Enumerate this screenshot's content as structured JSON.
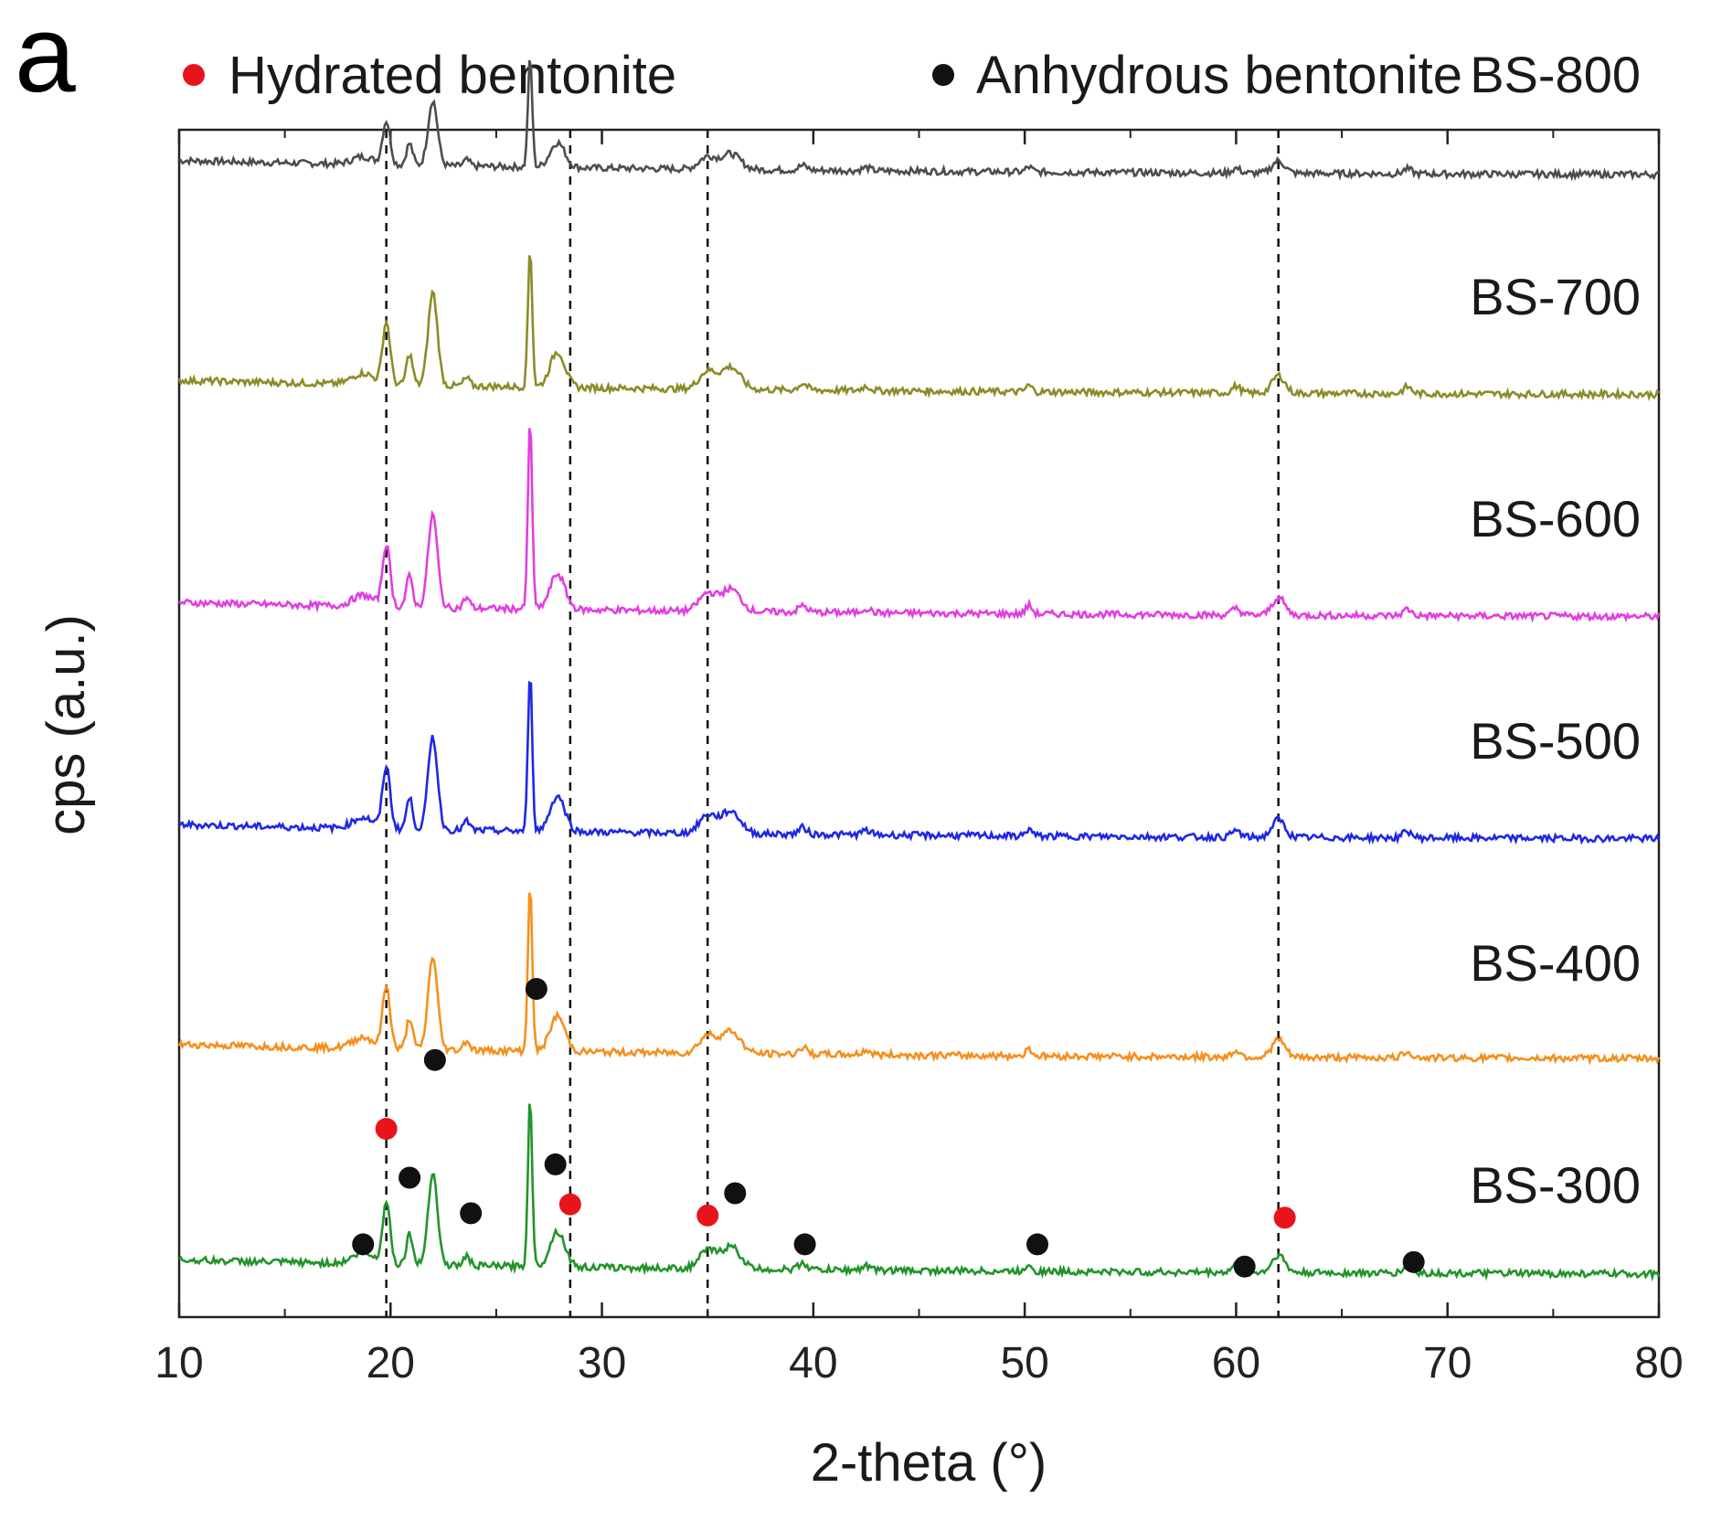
{
  "panel_label": "a",
  "legend": [
    {
      "label": "Hydrated bentonite",
      "color": "#e8141c",
      "marker": "dot"
    },
    {
      "label": "Anhydrous bentonite",
      "color": "#111111",
      "marker": "dot"
    }
  ],
  "chart_data": {
    "type": "line",
    "xlabel": "2-theta (°)",
    "ylabel": "cps (a.u.)",
    "xlim": [
      10,
      80
    ],
    "x_ticks": [
      10,
      20,
      30,
      40,
      50,
      60,
      70,
      80
    ],
    "y_ticks_shown": false,
    "grid": false,
    "reference_lines_x": [
      19.8,
      28.5,
      35.0,
      62.0
    ],
    "series": [
      {
        "name": "BS-800",
        "color": "#4d4d4d",
        "offset": 5.0,
        "base": 0.01,
        "sharp_scale": 0.55,
        "broad_scale": 0.7
      },
      {
        "name": "BS-700",
        "color": "#8c8c28",
        "offset": 4.0,
        "base": 0.02,
        "sharp_scale": 0.7,
        "broad_scale": 1.0
      },
      {
        "name": "BS-600",
        "color": "#e23ee2",
        "offset": 3.0,
        "base": 0.02,
        "sharp_scale": 0.95,
        "broad_scale": 1.0
      },
      {
        "name": "BS-500",
        "color": "#1e28e6",
        "offset": 2.0,
        "base": 0.02,
        "sharp_scale": 0.8,
        "broad_scale": 1.0
      },
      {
        "name": "BS-400",
        "color": "#f5901e",
        "offset": 1.0,
        "base": 0.03,
        "sharp_scale": 0.85,
        "broad_scale": 1.0
      },
      {
        "name": "BS-300",
        "color": "#22942a",
        "offset": 0.0,
        "base": 0.06,
        "sharp_scale": 0.85,
        "broad_scale": 1.0
      }
    ],
    "peaks": [
      {
        "x": 18.7,
        "height": 0.05,
        "width": 0.5
      },
      {
        "x": 19.8,
        "height": 0.28,
        "width": 0.18
      },
      {
        "x": 20.9,
        "height": 0.14,
        "width": 0.15
      },
      {
        "x": 22.0,
        "height": 0.42,
        "width": 0.22
      },
      {
        "x": 23.6,
        "height": 0.05,
        "width": 0.15
      },
      {
        "x": 26.6,
        "height": 0.9,
        "width": 0.1
      },
      {
        "x": 27.9,
        "height": 0.16,
        "width": 0.35
      },
      {
        "x": 35.0,
        "height": 0.08,
        "width": 0.4
      },
      {
        "x": 36.1,
        "height": 0.1,
        "width": 0.45
      },
      {
        "x": 39.5,
        "height": 0.03,
        "width": 0.2
      },
      {
        "x": 42.5,
        "height": 0.02,
        "width": 0.2
      },
      {
        "x": 50.2,
        "height": 0.04,
        "width": 0.15
      },
      {
        "x": 60.0,
        "height": 0.03,
        "width": 0.2
      },
      {
        "x": 62.0,
        "height": 0.08,
        "width": 0.3
      },
      {
        "x": 68.1,
        "height": 0.03,
        "width": 0.2
      }
    ],
    "markers_on_bs300": [
      {
        "x": 18.7,
        "y": 0.2,
        "type": "anhydrous"
      },
      {
        "x": 19.8,
        "y": 0.72,
        "type": "hydrated"
      },
      {
        "x": 20.9,
        "y": 0.5,
        "type": "anhydrous"
      },
      {
        "x": 22.1,
        "y": 1.03,
        "type": "anhydrous"
      },
      {
        "x": 23.8,
        "y": 0.34,
        "type": "anhydrous"
      },
      {
        "x": 26.9,
        "y": 1.35,
        "type": "anhydrous"
      },
      {
        "x": 27.8,
        "y": 0.56,
        "type": "anhydrous"
      },
      {
        "x": 28.5,
        "y": 0.38,
        "type": "hydrated"
      },
      {
        "x": 35.0,
        "y": 0.33,
        "type": "hydrated"
      },
      {
        "x": 36.3,
        "y": 0.43,
        "type": "anhydrous"
      },
      {
        "x": 39.6,
        "y": 0.2,
        "type": "anhydrous"
      },
      {
        "x": 50.6,
        "y": 0.2,
        "type": "anhydrous"
      },
      {
        "x": 60.4,
        "y": 0.1,
        "type": "anhydrous"
      },
      {
        "x": 62.3,
        "y": 0.32,
        "type": "hydrated"
      },
      {
        "x": 68.4,
        "y": 0.12,
        "type": "anhydrous"
      }
    ]
  }
}
